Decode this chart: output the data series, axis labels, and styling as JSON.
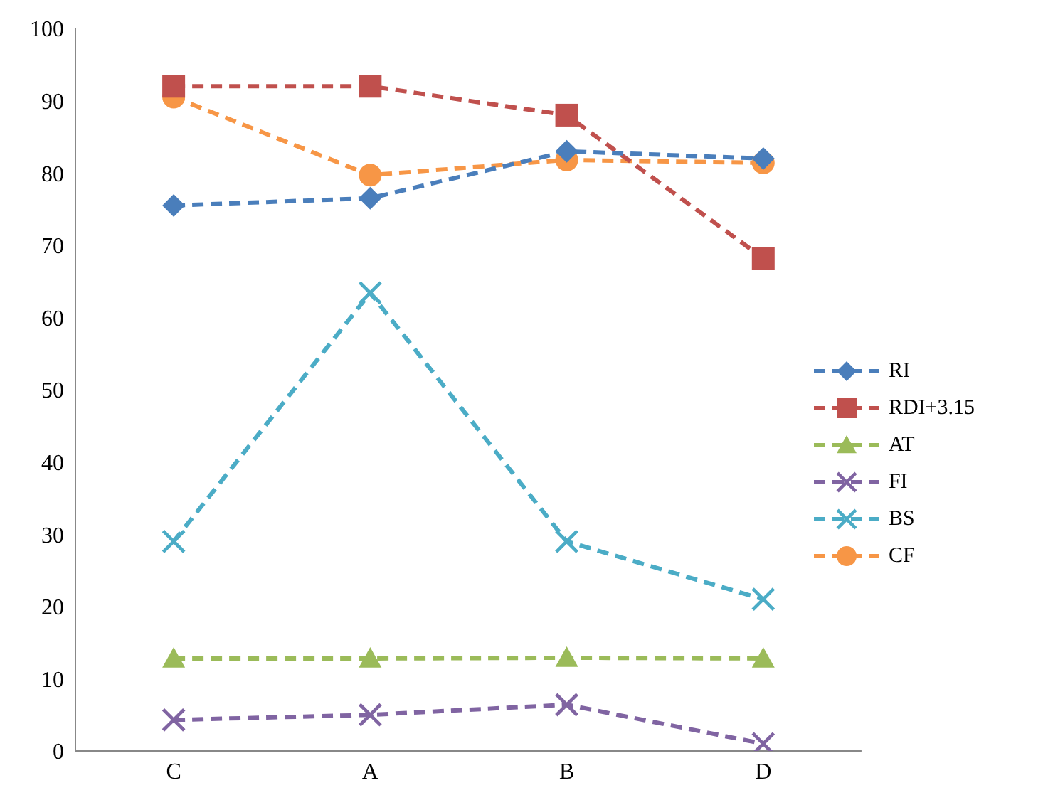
{
  "chart_data": {
    "type": "line",
    "categories": [
      "C",
      "A",
      "B",
      "D"
    ],
    "series": [
      {
        "name": "RI",
        "color": "#4a7ebb",
        "marker": "diamond",
        "values": [
          75.5,
          76.5,
          83,
          82
        ]
      },
      {
        "name": "RDI+3.15",
        "color": "#c0504d",
        "marker": "square",
        "values": [
          92,
          92,
          88,
          68.2
        ]
      },
      {
        "name": "AT",
        "color": "#9bbb59",
        "marker": "triangle",
        "values": [
          12.8,
          12.8,
          12.9,
          12.8
        ]
      },
      {
        "name": "FI",
        "color": "#8064a2",
        "marker": "cross",
        "values": [
          4.3,
          5,
          6.4,
          1
        ]
      },
      {
        "name": "BS",
        "color": "#4bacc6",
        "marker": "cross",
        "values": [
          29,
          63.4,
          29,
          21
        ]
      },
      {
        "name": "CF",
        "color": "#f79646",
        "marker": "circle",
        "values": [
          90.5,
          79.7,
          81.8,
          81.4
        ]
      }
    ],
    "ylim": [
      0,
      100
    ],
    "yticks": [
      0,
      10,
      20,
      30,
      40,
      50,
      60,
      70,
      80,
      90,
      100
    ],
    "grid": false,
    "legend": "right",
    "line_style": "dashed"
  }
}
